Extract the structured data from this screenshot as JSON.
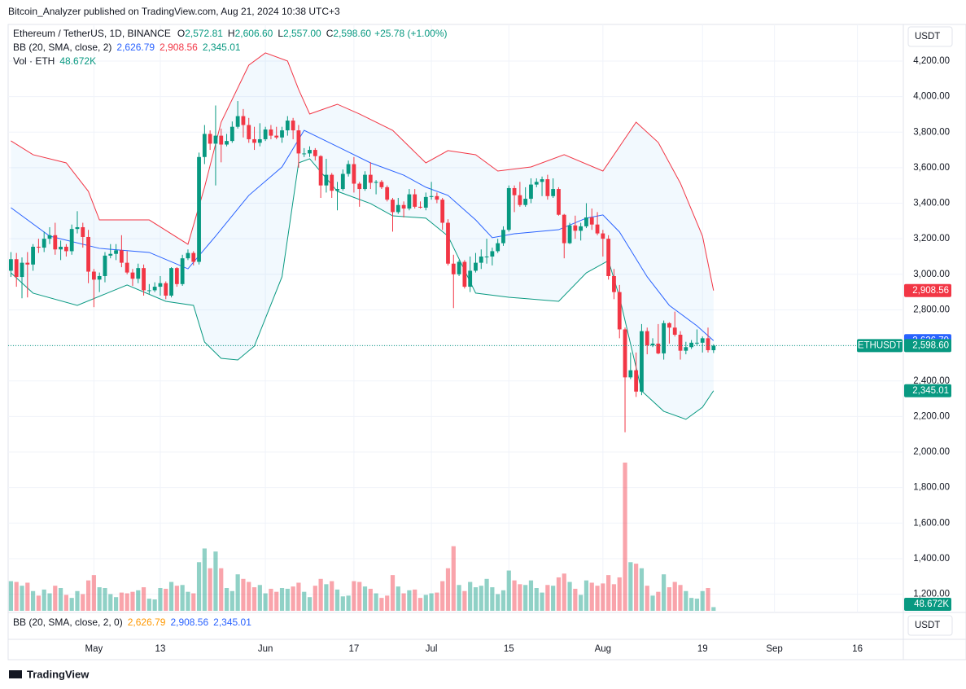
{
  "chart_data": {
    "type": "candlestick",
    "title": "Bitcoin_Analyzer published on TradingView.com, Aug 21, 2024 10:38 UTC+3",
    "symbol": "Ethereum / TetherUS, 1D, BINANCE",
    "legend_ohlc": [
      [
        "O",
        "2,572.81"
      ],
      [
        "H",
        "2,606.60"
      ],
      [
        "L",
        "2,557.00"
      ],
      [
        "C",
        "2,598.60"
      ]
    ],
    "change": "+25.78 (+1.00%)",
    "bb_name": "BB (20, SMA, close, 2)",
    "bb_values": [
      "2,626.79",
      "2,908.56",
      "2,345.01"
    ],
    "vol_name": "Vol · ETH",
    "vol_value": "48.672K",
    "bb_pane_name": "BB (20, SMA, close, 2, 0)",
    "currency": "USDT",
    "ticker": "ETHUSDT",
    "footer": "TradingView",
    "up_color": "#089981",
    "down_color": "#f23645",
    "grid": true,
    "xlim": [
      -0.5,
      161.3
    ],
    "ylim": [
      946,
      4406
    ],
    "xticks": [
      {
        "value": 15,
        "label": "May"
      },
      {
        "value": 27,
        "label": "13"
      },
      {
        "value": 46,
        "label": "Jun"
      },
      {
        "value": 62,
        "label": "17"
      },
      {
        "value": 76,
        "label": "Jul"
      },
      {
        "value": 90,
        "label": "15"
      },
      {
        "value": 107,
        "label": "Aug"
      },
      {
        "value": 125,
        "label": "19"
      },
      {
        "value": 138,
        "label": "Sep"
      },
      {
        "value": 153,
        "label": "16"
      }
    ],
    "yticks": [
      {
        "value": 1200,
        "label": "1,200.00"
      },
      {
        "value": 1400,
        "label": "1,400.00"
      },
      {
        "value": 1600,
        "label": "1,600.00"
      },
      {
        "value": 1800,
        "label": "1,800.00"
      },
      {
        "value": 2000,
        "label": "2,000.00"
      },
      {
        "value": 2200,
        "label": "2,200.00"
      },
      {
        "value": 2400,
        "label": "2,400.00"
      },
      {
        "value": 2600,
        "label": "2,600.00"
      },
      {
        "value": 2800,
        "label": "2,800.00"
      },
      {
        "value": 3000,
        "label": "3,000.00"
      },
      {
        "value": 3200,
        "label": "3,200.00"
      },
      {
        "value": 3400,
        "label": "3,400.00"
      },
      {
        "value": 3600,
        "label": "3,600.00"
      },
      {
        "value": 3800,
        "label": "3,800.00"
      },
      {
        "value": 4000,
        "label": "4,000.00"
      },
      {
        "value": 4200,
        "label": "4,200.00"
      }
    ],
    "candles": [
      [
        3020,
        3125,
        2985,
        3085
      ],
      [
        3085,
        3120,
        2930,
        2985
      ],
      [
        2985,
        3095,
        2865,
        3065
      ],
      [
        3065,
        3125,
        2870,
        3055
      ],
      [
        3055,
        3170,
        3020,
        3155
      ],
      [
        3155,
        3200,
        3120,
        3150
      ],
      [
        3150,
        3240,
        3125,
        3200
      ],
      [
        3200,
        3265,
        3170,
        3220
      ],
      [
        3220,
        3290,
        3110,
        3140
      ],
      [
        3140,
        3190,
        3080,
        3155
      ],
      [
        3155,
        3170,
        3100,
        3130
      ],
      [
        3130,
        3280,
        3110,
        3255
      ],
      [
        3255,
        3355,
        3230,
        3265
      ],
      [
        3265,
        3290,
        3150,
        3210
      ],
      [
        3210,
        3250,
        2950,
        3015
      ],
      [
        3015,
        3030,
        2815,
        2970
      ],
      [
        2970,
        3010,
        2900,
        2990
      ],
      [
        2990,
        3125,
        2955,
        3105
      ],
      [
        3105,
        3170,
        3090,
        3115
      ],
      [
        3115,
        3170,
        3080,
        3135
      ],
      [
        3135,
        3220,
        3040,
        3065
      ],
      [
        3065,
        3130,
        3000,
        3010
      ],
      [
        3010,
        3030,
        2935,
        2975
      ],
      [
        2975,
        3060,
        2950,
        3035
      ],
      [
        3035,
        3055,
        2880,
        2910
      ],
      [
        2910,
        2945,
        2890,
        2910
      ],
      [
        2910,
        2955,
        2900,
        2930
      ],
      [
        2930,
        2990,
        2880,
        2950
      ],
      [
        2950,
        2960,
        2860,
        2880
      ],
      [
        2880,
        3040,
        2870,
        3035
      ],
      [
        3035,
        3040,
        2930,
        2945
      ],
      [
        2945,
        3110,
        2935,
        3090
      ],
      [
        3090,
        3140,
        3080,
        3120
      ],
      [
        3120,
        3130,
        3050,
        3070
      ],
      [
        3070,
        3685,
        3055,
        3660
      ],
      [
        3660,
        3840,
        3620,
        3790
      ],
      [
        3790,
        3810,
        3700,
        3735
      ],
      [
        3735,
        3950,
        3500,
        3780
      ],
      [
        3780,
        3820,
        3630,
        3730
      ],
      [
        3730,
        3790,
        3720,
        3750
      ],
      [
        3750,
        3860,
        3740,
        3830
      ],
      [
        3830,
        3975,
        3820,
        3890
      ],
      [
        3890,
        3930,
        3770,
        3840
      ],
      [
        3840,
        3880,
        3740,
        3760
      ],
      [
        3760,
        3830,
        3700,
        3740
      ],
      [
        3740,
        3850,
        3720,
        3760
      ],
      [
        3760,
        3830,
        3750,
        3815
      ],
      [
        3815,
        3840,
        3760,
        3780
      ],
      [
        3780,
        3830,
        3760,
        3770
      ],
      [
        3770,
        3830,
        3740,
        3810
      ],
      [
        3810,
        3890,
        3780,
        3865
      ],
      [
        3865,
        3880,
        3760,
        3810
      ],
      [
        3810,
        3840,
        3600,
        3680
      ],
      [
        3680,
        3710,
        3660,
        3680
      ],
      [
        3680,
        3720,
        3660,
        3700
      ],
      [
        3700,
        3710,
        3640,
        3665
      ],
      [
        3665,
        3670,
        3430,
        3500
      ],
      [
        3500,
        3650,
        3460,
        3560
      ],
      [
        3560,
        3570,
        3430,
        3470
      ],
      [
        3470,
        3520,
        3360,
        3480
      ],
      [
        3480,
        3590,
        3470,
        3565
      ],
      [
        3565,
        3640,
        3550,
        3620
      ],
      [
        3620,
        3660,
        3460,
        3510
      ],
      [
        3510,
        3520,
        3380,
        3480
      ],
      [
        3480,
        3580,
        3470,
        3560
      ],
      [
        3560,
        3630,
        3480,
        3515
      ],
      [
        3515,
        3530,
        3450,
        3520
      ],
      [
        3520,
        3530,
        3480,
        3490
      ],
      [
        3490,
        3500,
        3410,
        3420
      ],
      [
        3420,
        3430,
        3240,
        3350
      ],
      [
        3350,
        3430,
        3340,
        3390
      ],
      [
        3390,
        3410,
        3320,
        3370
      ],
      [
        3370,
        3480,
        3360,
        3450
      ],
      [
        3450,
        3480,
        3370,
        3380
      ],
      [
        3380,
        3410,
        3370,
        3375
      ],
      [
        3375,
        3460,
        3360,
        3435
      ],
      [
        3435,
        3520,
        3420,
        3440
      ],
      [
        3440,
        3460,
        3400,
        3420
      ],
      [
        3420,
        3430,
        3250,
        3290
      ],
      [
        3290,
        3310,
        3050,
        3060
      ],
      [
        3060,
        3110,
        2810,
        3000
      ],
      [
        3000,
        3080,
        2990,
        3070
      ],
      [
        3070,
        3080,
        2920,
        2930
      ],
      [
        2930,
        3100,
        2900,
        3020
      ],
      [
        3020,
        3120,
        3010,
        3065
      ],
      [
        3065,
        3140,
        3030,
        3100
      ],
      [
        3100,
        3200,
        3060,
        3100
      ],
      [
        3100,
        3150,
        3050,
        3130
      ],
      [
        3130,
        3200,
        3120,
        3175
      ],
      [
        3175,
        3270,
        3160,
        3250
      ],
      [
        3250,
        3500,
        3240,
        3485
      ],
      [
        3485,
        3500,
        3350,
        3445
      ],
      [
        3445,
        3520,
        3380,
        3390
      ],
      [
        3390,
        3490,
        3380,
        3425
      ],
      [
        3425,
        3540,
        3400,
        3505
      ],
      [
        3505,
        3540,
        3490,
        3520
      ],
      [
        3520,
        3550,
        3440,
        3535
      ],
      [
        3535,
        3560,
        3420,
        3440
      ],
      [
        3440,
        3540,
        3430,
        3480
      ],
      [
        3480,
        3490,
        3330,
        3335
      ],
      [
        3335,
        3340,
        3090,
        3175
      ],
      [
        3175,
        3290,
        3170,
        3275
      ],
      [
        3275,
        3330,
        3200,
        3245
      ],
      [
        3245,
        3290,
        3190,
        3270
      ],
      [
        3270,
        3400,
        3260,
        3320
      ],
      [
        3320,
        3370,
        3250,
        3280
      ],
      [
        3280,
        3350,
        3220,
        3230
      ],
      [
        3230,
        3250,
        3100,
        3200
      ],
      [
        3200,
        3220,
        2970,
        2990
      ],
      [
        2990,
        3030,
        2860,
        2900
      ],
      [
        2900,
        2940,
        2640,
        2690
      ],
      [
        2690,
        2700,
        2111,
        2420
      ],
      [
        2420,
        2560,
        2410,
        2460
      ],
      [
        2460,
        2560,
        2310,
        2340
      ],
      [
        2340,
        2720,
        2320,
        2680
      ],
      [
        2680,
        2700,
        2550,
        2600
      ],
      [
        2600,
        2640,
        2590,
        2610
      ],
      [
        2610,
        2720,
        2550,
        2555
      ],
      [
        2555,
        2740,
        2520,
        2725
      ],
      [
        2725,
        2730,
        2610,
        2700
      ],
      [
        2700,
        2790,
        2650,
        2660
      ],
      [
        2660,
        2680,
        2520,
        2570
      ],
      [
        2570,
        2620,
        2550,
        2590
      ],
      [
        2590,
        2630,
        2580,
        2615
      ],
      [
        2615,
        2690,
        2600,
        2615
      ],
      [
        2615,
        2650,
        2560,
        2640
      ],
      [
        2640,
        2700,
        2560,
        2573
      ],
      [
        2572.81,
        2606.6,
        2557,
        2598.6
      ]
    ],
    "volume": {
      "up_color": "rgba(8,153,129,0.45)",
      "down_color": "rgba(242,54,69,0.45)",
      "values": [
        390000,
        380000,
        330000,
        370000,
        260000,
        200000,
        280000,
        230000,
        330000,
        300000,
        210000,
        170000,
        260000,
        220000,
        400000,
        470000,
        310000,
        300000,
        220000,
        180000,
        240000,
        230000,
        250000,
        270000,
        310000,
        160000,
        150000,
        300000,
        290000,
        380000,
        330000,
        340000,
        250000,
        230000,
        640000,
        820000,
        560000,
        780000,
        560000,
        300000,
        260000,
        480000,
        420000,
        380000,
        310000,
        340000,
        230000,
        290000,
        250000,
        300000,
        290000,
        320000,
        370000,
        250000,
        180000,
        330000,
        420000,
        350000,
        390000,
        280000,
        190000,
        200000,
        390000,
        380000,
        320000,
        290000,
        230000,
        170000,
        200000,
        470000,
        320000,
        230000,
        270000,
        280000,
        170000,
        210000,
        230000,
        240000,
        390000,
        560000,
        850000,
        340000,
        260000,
        380000,
        310000,
        330000,
        420000,
        310000,
        220000,
        270000,
        530000,
        400000,
        350000,
        340000,
        400000,
        300000,
        240000,
        340000,
        330000,
        440000,
        490000,
        380000,
        290000,
        210000,
        400000,
        370000,
        330000,
        360000,
        470000,
        350000,
        440000,
        1950000,
        640000,
        620000,
        560000,
        330000,
        200000,
        250000,
        480000,
        310000,
        380000,
        340000,
        260000,
        170000,
        160000,
        260000,
        300000,
        48672
      ]
    },
    "bands": [
      {
        "color": "#f23645",
        "x": [
          0,
          4,
          10,
          14,
          16,
          25,
          32,
          35,
          38,
          43,
          46,
          50,
          52,
          54,
          59,
          63,
          69,
          75,
          79,
          84,
          88,
          94,
          100,
          107,
          113,
          117,
          121,
          125,
          127
        ],
        "values": [
          3751,
          3673,
          3627,
          3467,
          3306,
          3306,
          3169,
          3490,
          3856,
          4177,
          4246,
          4200,
          4040,
          3902,
          3957,
          3902,
          3810,
          3627,
          3696,
          3673,
          3581,
          3604,
          3673,
          3581,
          3856,
          3742,
          3513,
          3215,
          2908.56
        ]
      },
      {
        "color": "#2962ff",
        "x": [
          0,
          7,
          16,
          25,
          32,
          37,
          43,
          49,
          53,
          59,
          65,
          71,
          75,
          79,
          84,
          87,
          91,
          99,
          104,
          107,
          110,
          115,
          119,
          124,
          127
        ],
        "values": [
          3375,
          3215,
          3146,
          3123,
          3031,
          3215,
          3444,
          3604,
          3810,
          3719,
          3627,
          3558,
          3490,
          3444,
          3306,
          3206,
          3228,
          3251,
          3316,
          3334,
          3238,
          2986,
          2825,
          2710,
          2626.79
        ]
      },
      {
        "color": "#089981",
        "x": [
          0,
          4,
          12,
          21,
          28,
          33,
          35,
          38,
          41,
          44,
          49,
          52,
          54,
          59,
          65,
          69,
          75,
          79,
          84,
          90,
          99,
          104,
          108,
          110,
          114,
          118,
          122,
          125,
          127
        ],
        "values": [
          3008,
          2894,
          2825,
          2940,
          2848,
          2825,
          2619,
          2527,
          2518,
          2596,
          2986,
          3627,
          3650,
          3467,
          3398,
          3329,
          3316,
          3215,
          2894,
          2871,
          2848,
          3008,
          3077,
          2871,
          2344,
          2229,
          2184,
          2252,
          2345.01
        ]
      }
    ]
  }
}
